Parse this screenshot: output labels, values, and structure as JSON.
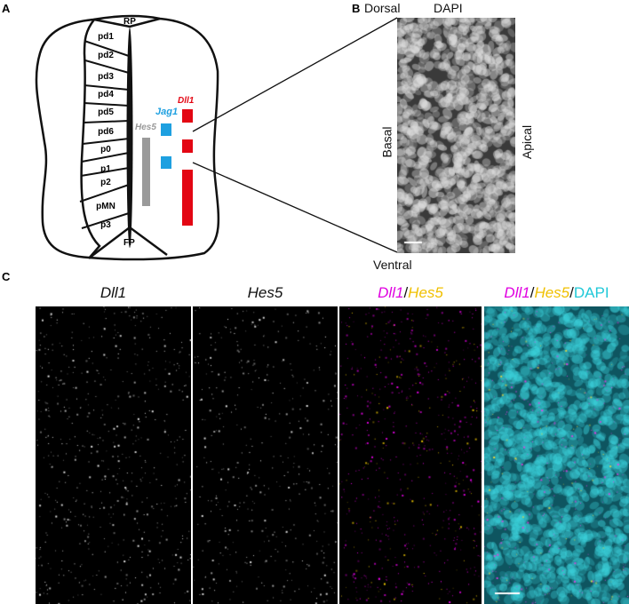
{
  "panels": {
    "a": "A",
    "b": "B",
    "c": "C"
  },
  "panel_a": {
    "roof_plate": "RP",
    "floor_plate": "FP",
    "domains": [
      "pd1",
      "pd2",
      "pd3",
      "pd4",
      "pd5",
      "pd6",
      "p0",
      "p1",
      "p2",
      "pMN",
      "p3"
    ],
    "genes": {
      "dll1": "Dll1",
      "jag1": "Jag1",
      "hes5": "Hes5"
    },
    "colors": {
      "dll1": "#e30613",
      "jag1": "#1ea0e0",
      "hes5": "#9a9a9a"
    }
  },
  "panel_b": {
    "dorsal": "Dorsal",
    "stain": "DAPI",
    "basal": "Basal",
    "apical": "Apical",
    "ventral": "Ventral"
  },
  "panel_c": {
    "titles": [
      {
        "parts": [
          {
            "text": "Dll1",
            "color": "#111111",
            "italic": true
          }
        ]
      },
      {
        "parts": [
          {
            "text": "Hes5",
            "color": "#111111",
            "italic": true
          }
        ]
      },
      {
        "parts": [
          {
            "text": "Dll1",
            "color": "#e000e0",
            "italic": true
          },
          {
            "text": "/",
            "color": "#111111",
            "italic": false
          },
          {
            "text": "Hes5",
            "color": "#f0c000",
            "italic": true
          }
        ]
      },
      {
        "parts": [
          {
            "text": "Dll1",
            "color": "#e000e0",
            "italic": true
          },
          {
            "text": "/",
            "color": "#111111",
            "italic": false
          },
          {
            "text": "Hes5",
            "color": "#f0c000",
            "italic": true
          },
          {
            "text": "/",
            "color": "#111111",
            "italic": false
          },
          {
            "text": "DAPI",
            "color": "#20c8d8",
            "italic": false
          }
        ]
      }
    ]
  }
}
